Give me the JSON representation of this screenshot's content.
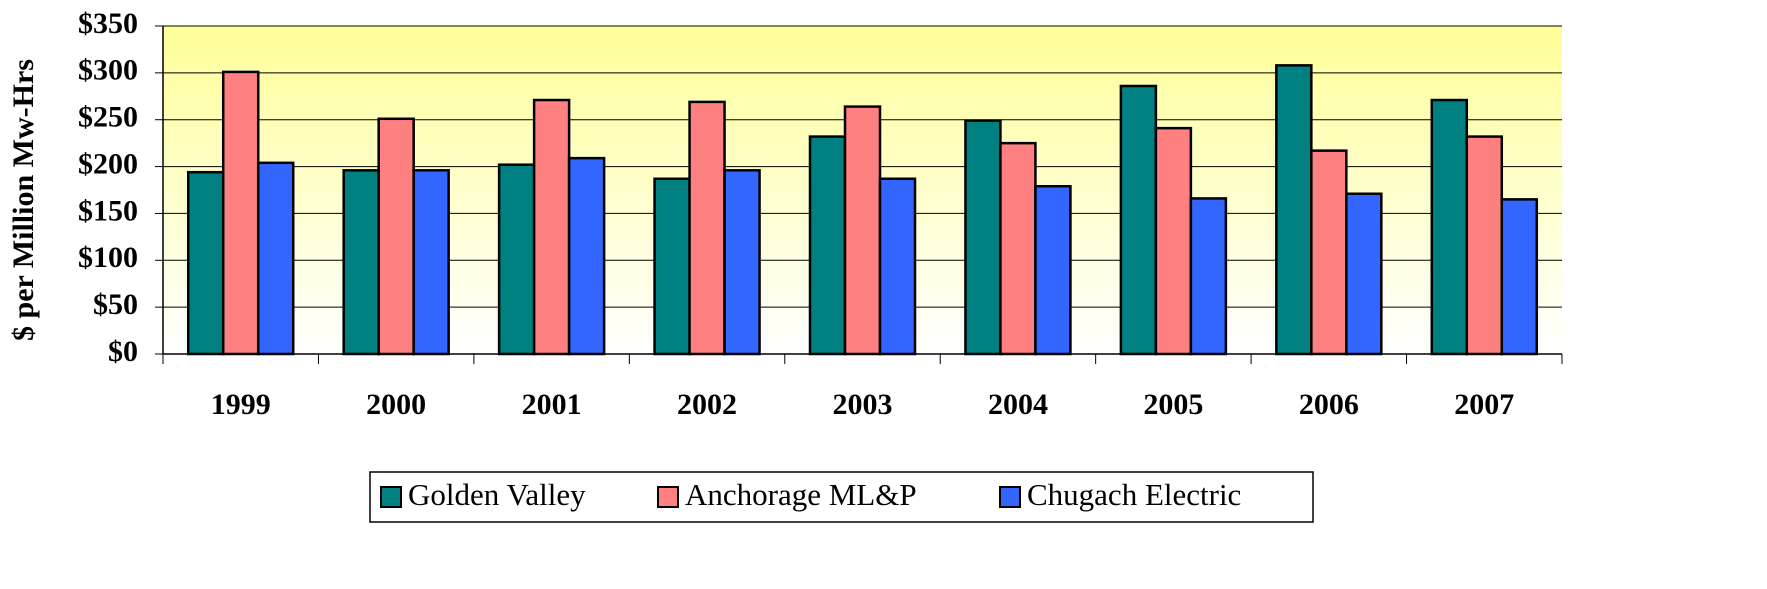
{
  "chart_data": {
    "type": "bar",
    "y_label": "$ per Million Mw-Hrs",
    "categories": [
      "1999",
      "2000",
      "2001",
      "2002",
      "2003",
      "2004",
      "2005",
      "2006",
      "2007"
    ],
    "series": [
      {
        "name": "Golden Valley",
        "color": "#008080",
        "values": [
          194,
          196,
          202,
          187,
          232,
          249,
          286,
          308,
          271
        ]
      },
      {
        "name": "Anchorage ML&P",
        "color": "#ff8080",
        "values": [
          301,
          251,
          271,
          269,
          264,
          225,
          241,
          217,
          232
        ]
      },
      {
        "name": "Chugach Electric",
        "color": "#3366ff",
        "values": [
          204,
          196,
          209,
          196,
          187,
          179,
          166,
          171,
          165
        ]
      }
    ],
    "ylim": [
      0,
      350
    ],
    "yticks": [
      {
        "value": 0,
        "label": "$0"
      },
      {
        "value": 50,
        "label": "$50"
      },
      {
        "value": 100,
        "label": "$100"
      },
      {
        "value": 150,
        "label": "$150"
      },
      {
        "value": 200,
        "label": "$200"
      },
      {
        "value": 250,
        "label": "$250"
      },
      {
        "value": 300,
        "label": "$300"
      },
      {
        "value": 350,
        "label": "$350"
      }
    ],
    "grid": true,
    "legend": "bottom"
  }
}
